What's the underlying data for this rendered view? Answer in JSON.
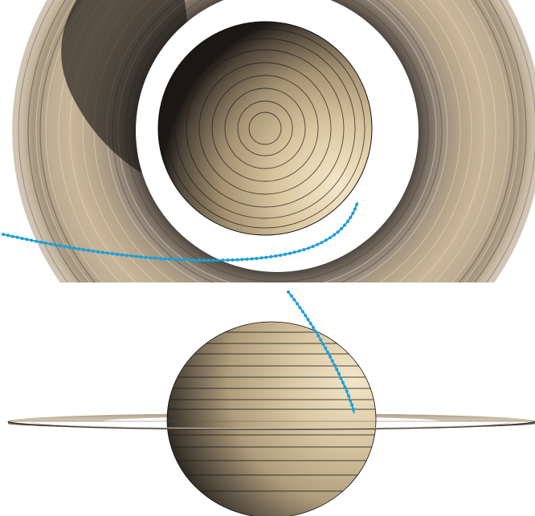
{
  "figure": {
    "views": [
      {
        "id": "polar",
        "label": ""
      },
      {
        "id": "equatorial",
        "label": ""
      }
    ],
    "colors": {
      "background": "#ffffff",
      "ring_light": "#cbb89c",
      "ring_mid": "#a8957a",
      "ring_dark": "#3b3631",
      "planet_light": "#efe3c6",
      "planet_mid": "#bca884",
      "planet_dark": "#1c1915",
      "trajectory": "#1e9fd6"
    },
    "trajectory": {
      "style": "dotted-line"
    },
    "planet": {
      "name": ""
    }
  }
}
